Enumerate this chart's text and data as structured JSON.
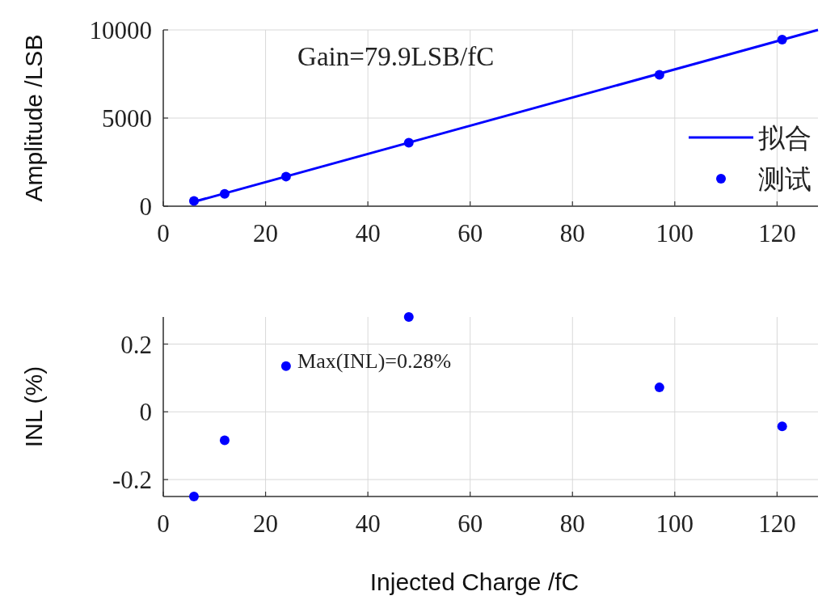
{
  "chart_data": [
    {
      "type": "scatter",
      "ylabel": "Amplitude /LSB",
      "annotations": [
        "Gain=79.9LSB/fC"
      ],
      "xlim": [
        0,
        128
      ],
      "xticks": [
        0,
        20,
        40,
        60,
        80,
        100,
        120
      ],
      "ylim": [
        0,
        10000
      ],
      "yticks": [
        0,
        5000,
        10000
      ],
      "grid": true,
      "legend": "right",
      "series": [
        {
          "name": "拟合",
          "type": "line",
          "color": "#0000ff",
          "x": [
            6,
            128
          ],
          "values": [
            250,
            10000
          ]
        },
        {
          "name": "测试",
          "marker": "circle",
          "color": "#0000ff",
          "x": [
            6,
            12,
            24,
            48,
            97,
            121
          ],
          "values": [
            300,
            700,
            1680,
            3600,
            7450,
            9450
          ]
        }
      ]
    },
    {
      "type": "scatter",
      "xlabel": "Injected Charge /fC",
      "ylabel": "INL (%)",
      "annotations": [
        "Max(INL)=0.28%"
      ],
      "xlim": [
        0,
        128
      ],
      "xticks": [
        0,
        20,
        40,
        60,
        80,
        100,
        120
      ],
      "ylim": [
        -0.25,
        0.28
      ],
      "yticks": [
        {
          "value": -0.2,
          "label": "-0.2"
        },
        0,
        0.2
      ],
      "grid": true,
      "marker": "circle",
      "series": [
        {
          "color": "#0000ff",
          "x": [
            6,
            12,
            24,
            48,
            97,
            121
          ],
          "values": [
            -0.25,
            -0.084,
            0.135,
            0.28,
            0.072,
            -0.043
          ]
        }
      ]
    }
  ]
}
